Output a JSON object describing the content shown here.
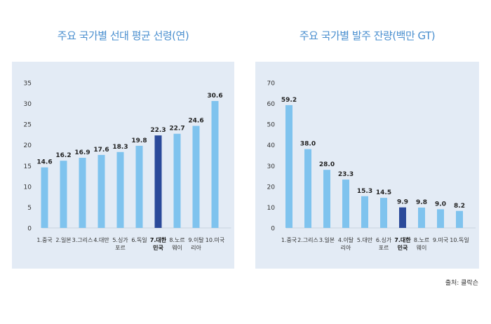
{
  "chart_data": [
    {
      "type": "bar",
      "title": "주요 국가별 선대 평균 선령(연)",
      "xlabel": "",
      "ylabel": "",
      "ylim": [
        0,
        35
      ],
      "yticks": [
        0,
        5,
        10,
        15,
        20,
        25,
        30,
        35
      ],
      "grid": false,
      "highlight_index": 6,
      "categories": [
        [
          "1.중국"
        ],
        [
          "2.일본"
        ],
        [
          "3.그리스"
        ],
        [
          "4.대만"
        ],
        [
          "5.싱가",
          "포르"
        ],
        [
          "6.독일"
        ],
        [
          "7.대한",
          "민국"
        ],
        [
          "8.노르",
          "웨이"
        ],
        [
          "9.이탈",
          "리아"
        ],
        [
          "10.미국"
        ]
      ],
      "values": [
        14.6,
        16.2,
        16.9,
        17.6,
        18.3,
        19.8,
        22.3,
        22.7,
        24.6,
        30.6
      ],
      "value_labels": [
        "14.6",
        "16.2",
        "16.9",
        "17.6",
        "18.3",
        "19.8",
        "22.3",
        "22.7",
        "24.6",
        "30.6"
      ]
    },
    {
      "type": "bar",
      "title": "주요 국가별 발주 잔량(백만 GT)",
      "xlabel": "",
      "ylabel": "",
      "ylim": [
        0,
        70
      ],
      "yticks": [
        0,
        10,
        20,
        30,
        40,
        50,
        60,
        70
      ],
      "grid": false,
      "highlight_index": 6,
      "categories": [
        [
          "1.중국"
        ],
        [
          "2.그리스"
        ],
        [
          "3.일본"
        ],
        [
          "4.이탈",
          "리아"
        ],
        [
          "5.대만"
        ],
        [
          "6.싱가",
          "포르"
        ],
        [
          "7.대한",
          "민국"
        ],
        [
          "8.노르",
          "웨이"
        ],
        [
          "9.미국"
        ],
        [
          "10.독일"
        ]
      ],
      "values": [
        59.2,
        38.0,
        28.0,
        23.3,
        15.3,
        14.5,
        9.9,
        9.8,
        9.0,
        8.2
      ],
      "value_labels": [
        "59.2",
        "38.0",
        "28.0",
        "23.3",
        "15.3",
        "14.5",
        "9.9",
        "9.8",
        "9.0",
        "8.2"
      ]
    }
  ],
  "colors": {
    "bar": "#7fc3ee",
    "highlight": "#2b4a9a",
    "panel": "#e3ebf5",
    "title": "#4a8fcf",
    "text": "#333333"
  },
  "source_note": "출처: 클락슨"
}
